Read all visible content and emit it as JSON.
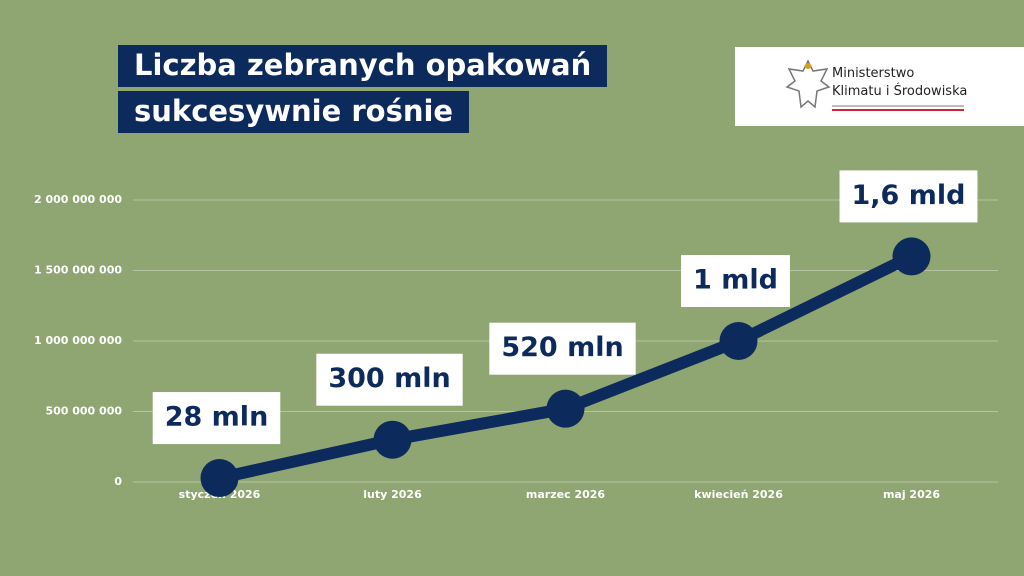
{
  "chart_data": {
    "type": "line",
    "title": "Liczba zebranych opakowań sukcesywnie rośnie",
    "categories": [
      "styczeń 2026",
      "luty 2026",
      "marzec 2026",
      "kwiecień 2026",
      "maj 2026"
    ],
    "values": [
      28000000,
      300000000,
      520000000,
      1000000000,
      1600000000
    ],
    "value_labels": [
      "28 mln",
      "300 mln",
      "520 mln",
      "1 mld",
      "1,6 mld"
    ],
    "color": "#0d2a5c",
    "ylim": [
      0,
      2000000000
    ],
    "yticks": [
      0,
      {
        "value": 500000000,
        "label": "500 000 000"
      },
      {
        "value": 1000000000,
        "label": "1 000 000 000"
      },
      {
        "value": 1500000000,
        "label": "1 500 000 000"
      },
      {
        "value": 2000000000,
        "label": "2 000 000 000"
      }
    ],
    "grid": true
  },
  "logo": {
    "lines": [
      "Ministerstwo",
      "Klimatu i Środowiska"
    ]
  }
}
